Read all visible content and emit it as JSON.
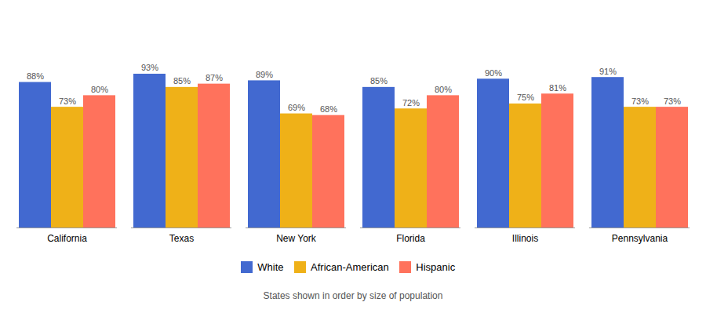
{
  "chart_data": {
    "type": "bar",
    "subtitle": "States shown in order by size of population",
    "categories": [
      "California",
      "Texas",
      "New York",
      "Florida",
      "Illinois",
      "Pennsylvania"
    ],
    "series": [
      {
        "name": "White",
        "values": [
          88,
          93,
          89,
          85,
          90,
          91
        ],
        "value_labels": [
          "88%",
          "93%",
          "89%",
          "85%",
          "90%",
          "91%"
        ]
      },
      {
        "name": "African-American",
        "values": [
          73,
          85,
          69,
          72,
          75,
          73
        ],
        "value_labels": [
          "73%",
          "85%",
          "69%",
          "72%",
          "75%",
          "73%"
        ]
      },
      {
        "name": "Hispanic",
        "values": [
          80,
          87,
          68,
          80,
          81,
          73
        ],
        "value_labels": [
          "80%",
          "87%",
          "68%",
          "80%",
          "81%",
          "73%"
        ]
      }
    ],
    "ylim": [
      0,
      130
    ],
    "grid": false,
    "legend": "bottom",
    "data_labels": true,
    "tick_labels": "x"
  }
}
